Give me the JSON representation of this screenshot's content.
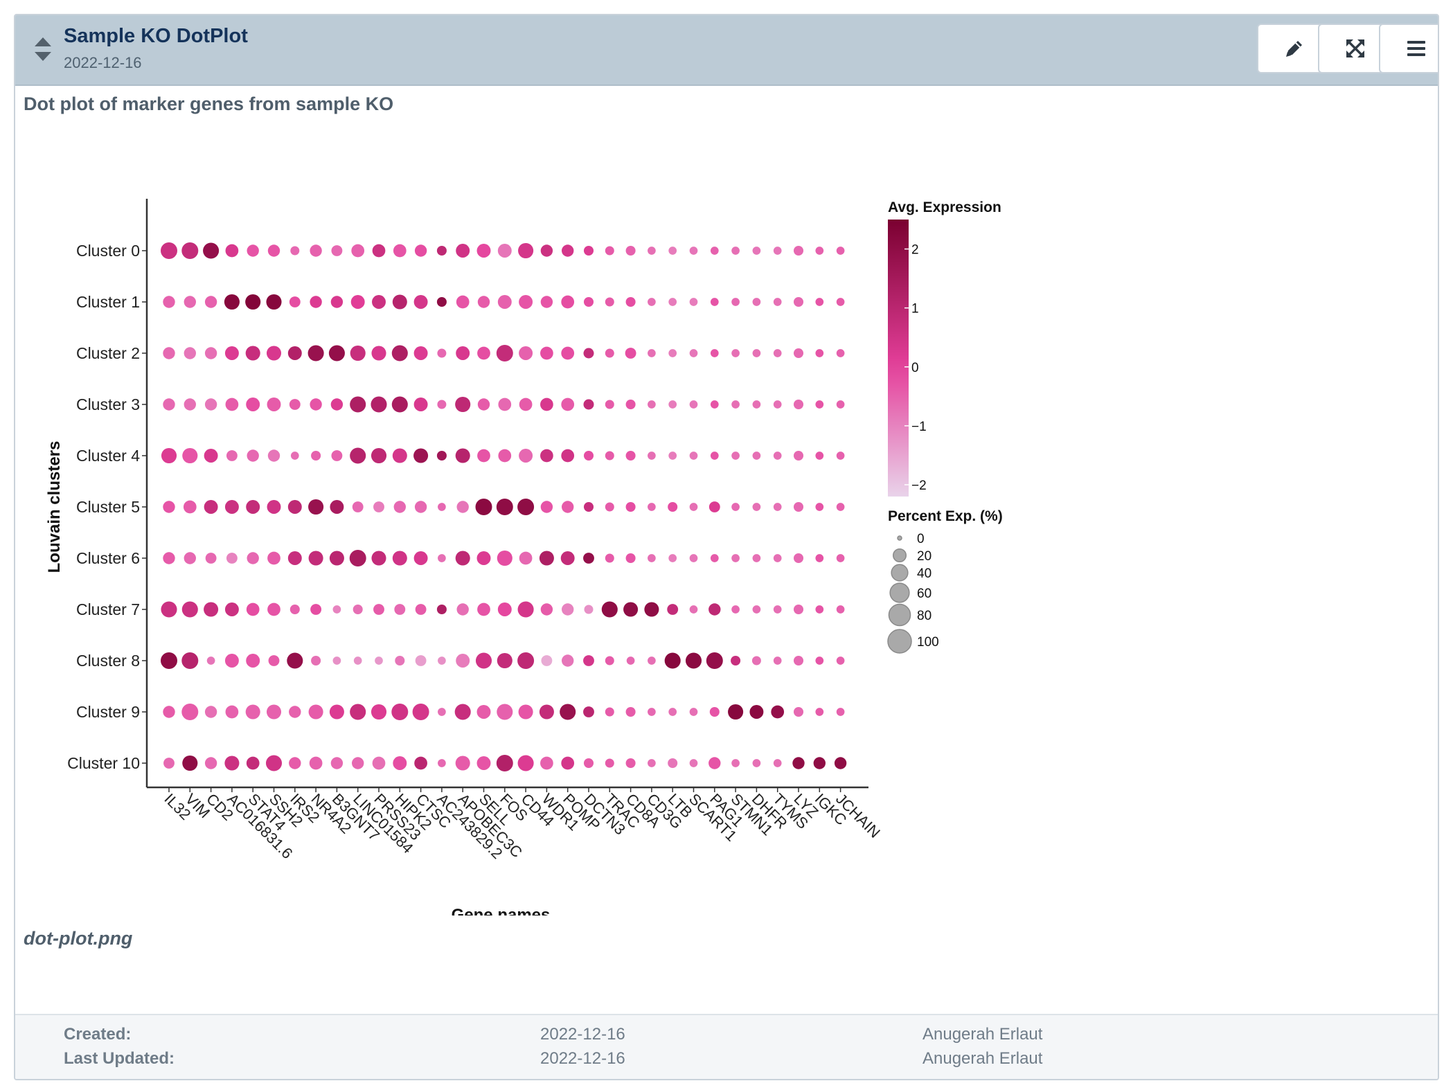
{
  "card": {
    "title": "Sample KO DotPlot",
    "date": "2022-12-16",
    "description": "Dot plot of marker genes from sample KO",
    "filename": "dot-plot.png",
    "buttons": {
      "edit": "pencil-icon",
      "expand": "expand-icon",
      "menu": "menu-icon"
    }
  },
  "footer": {
    "created_label": "Created:",
    "created_date": "2022-12-16",
    "created_by": "Anugerah Erlaut",
    "updated_label": "Last Updated:",
    "updated_date": "2022-12-16",
    "updated_by": "Anugerah Erlaut"
  },
  "colors": {
    "header_bg": "#bccbd6",
    "title": "#15335a",
    "low": "#e9d3ea",
    "mid": "#e5409b",
    "high": "#7a0030"
  },
  "chart_data": {
    "type": "dotplot",
    "xlabel": "Gene names",
    "ylabel": "Louvain clusters",
    "genes": [
      "IL32",
      "VIM",
      "CD2",
      "AC016831.6",
      "STAT4",
      "SSH2",
      "IRS2",
      "NR4A2",
      "B3GNT7",
      "LINC01584",
      "PRSS23",
      "HIPK2",
      "CTSC",
      "AC243829.2",
      "APOBEC3C",
      "SELL",
      "FOS",
      "CD44",
      "WDR1",
      "POMP",
      "DCTN3",
      "TRAC",
      "CD8A",
      "CD3G",
      "LTB",
      "SCART1",
      "PAG1",
      "STMN1",
      "DHFR",
      "TYMS",
      "LYZ",
      "IGKC",
      "JCHAIN"
    ],
    "clusters": [
      "Cluster 0",
      "Cluster 1",
      "Cluster 2",
      "Cluster 3",
      "Cluster 4",
      "Cluster 5",
      "Cluster 6",
      "Cluster 7",
      "Cluster 8",
      "Cluster 9",
      "Cluster 10"
    ],
    "legend_color": {
      "title": "Avg. Expression",
      "ticks": [
        "2",
        "1",
        "0",
        "−1",
        "−2"
      ],
      "range": [
        -2.2,
        2.5
      ]
    },
    "legend_size": {
      "title": "Percent Exp. (%)",
      "ticks": [
        "0",
        "20",
        "40",
        "60",
        "80",
        "100"
      ]
    },
    "expression": [
      [
        0.6,
        0.8,
        1.9,
        0.3,
        -0.3,
        -0.3,
        -0.6,
        -0.5,
        -0.6,
        -0.5,
        0.6,
        -0.3,
        -0.2,
        0.9,
        0.5,
        -0.1,
        -0.8,
        0.4,
        0.6,
        0.4,
        0.2,
        -0.4,
        -0.5,
        -0.7,
        -0.9,
        -0.8,
        -0.5,
        -0.7,
        -0.8,
        -0.8,
        -0.6,
        -0.5,
        -0.5
      ],
      [
        -0.5,
        -0.6,
        -0.5,
        2.2,
        2.3,
        2.2,
        -0.2,
        0.2,
        0.3,
        0.1,
        0.6,
        1.1,
        0.4,
        2.0,
        -0.3,
        -0.4,
        -0.5,
        -0.3,
        -0.3,
        -0.2,
        -0.2,
        -0.4,
        -0.2,
        -0.7,
        -0.9,
        -0.9,
        -0.3,
        -0.6,
        -0.7,
        -0.7,
        -0.6,
        -0.3,
        -0.4
      ],
      [
        -0.6,
        -0.8,
        -0.7,
        0.2,
        0.7,
        0.3,
        1.2,
        1.8,
        1.9,
        0.7,
        0.3,
        1.3,
        0.2,
        -0.6,
        0.3,
        -0.2,
        0.8,
        -0.5,
        -0.2,
        -0.2,
        0.8,
        -0.4,
        -0.2,
        -0.7,
        -0.9,
        -0.8,
        -0.3,
        -0.7,
        -0.7,
        -0.7,
        -0.6,
        -0.3,
        -0.5
      ],
      [
        -0.6,
        -0.7,
        -0.8,
        -0.4,
        -0.2,
        -0.4,
        -0.4,
        -0.3,
        0.2,
        1.3,
        1.2,
        1.4,
        0.3,
        -0.6,
        0.9,
        -0.4,
        -0.6,
        -0.4,
        0.3,
        -0.4,
        0.8,
        -0.4,
        -0.3,
        -0.7,
        -0.9,
        -0.8,
        -0.3,
        -0.7,
        -0.7,
        -0.7,
        -0.6,
        -0.3,
        -0.5
      ],
      [
        0.2,
        -0.3,
        0.3,
        -0.6,
        -0.6,
        -0.8,
        -0.7,
        -0.5,
        -0.5,
        1.1,
        0.9,
        0.4,
        1.7,
        1.6,
        1.1,
        -0.3,
        -0.4,
        -0.6,
        0.6,
        0.5,
        -0.2,
        -0.4,
        -0.3,
        -0.7,
        -0.9,
        -0.8,
        -0.3,
        -0.7,
        -0.7,
        -0.7,
        -0.6,
        -0.3,
        -0.5
      ],
      [
        -0.3,
        -0.4,
        0.7,
        0.6,
        0.8,
        0.5,
        0.9,
        1.8,
        1.4,
        -0.6,
        -0.9,
        -0.6,
        -0.6,
        -0.6,
        -0.8,
        2.1,
        2.0,
        2.0,
        -0.3,
        -0.4,
        0.7,
        -0.4,
        -0.2,
        -0.6,
        -0.2,
        -0.7,
        0.2,
        -0.6,
        -0.7,
        -0.7,
        -0.6,
        -0.3,
        -0.5
      ],
      [
        -0.4,
        -0.6,
        -0.6,
        -1.0,
        -0.6,
        -0.4,
        0.7,
        0.8,
        1.0,
        1.4,
        0.8,
        0.5,
        0.3,
        -0.7,
        0.9,
        0.2,
        -0.2,
        -0.6,
        1.3,
        0.8,
        1.9,
        -0.4,
        -0.3,
        -0.7,
        -0.9,
        -0.8,
        -0.4,
        -0.7,
        -0.7,
        -0.7,
        -0.6,
        -0.3,
        -0.5
      ],
      [
        0.6,
        0.6,
        0.7,
        0.6,
        -0.2,
        -0.3,
        -0.5,
        -0.2,
        -1.0,
        -0.7,
        -0.4,
        -0.6,
        -0.4,
        1.3,
        -0.7,
        -0.3,
        -0.1,
        0.4,
        -0.4,
        -1.0,
        -1.2,
        2.0,
        2.0,
        2.0,
        0.8,
        -0.7,
        0.9,
        -0.6,
        -0.7,
        -0.7,
        -0.6,
        -0.3,
        -0.5
      ],
      [
        2.0,
        1.1,
        -0.8,
        -0.3,
        -0.3,
        -0.4,
        1.9,
        -0.7,
        -1.2,
        -1.2,
        -1.3,
        -0.8,
        -1.4,
        -1.2,
        -0.9,
        0.5,
        0.8,
        0.9,
        -1.6,
        -0.8,
        0.4,
        -0.4,
        -0.6,
        -0.7,
        2.2,
        2.1,
        1.9,
        0.7,
        -0.7,
        -0.7,
        -0.6,
        -0.3,
        -0.5
      ],
      [
        -0.4,
        -0.4,
        -0.7,
        -0.5,
        -0.5,
        -0.5,
        -0.5,
        -0.4,
        0.2,
        0.7,
        0.2,
        0.5,
        0.4,
        -0.7,
        0.7,
        -0.4,
        -0.5,
        -0.3,
        0.8,
        1.8,
        1.0,
        -0.4,
        -0.4,
        -0.6,
        -0.7,
        -0.7,
        -0.3,
        2.2,
        2.1,
        1.9,
        -0.6,
        -0.4,
        -0.5
      ],
      [
        -0.6,
        2.0,
        -0.6,
        0.6,
        0.8,
        0.5,
        -0.4,
        -0.5,
        -0.6,
        -0.6,
        -0.7,
        -0.2,
        1.0,
        -0.6,
        -0.4,
        -0.3,
        1.2,
        0.2,
        -0.5,
        0.4,
        -0.4,
        -0.4,
        -0.4,
        -0.7,
        -0.8,
        -0.8,
        -0.3,
        -0.7,
        -0.7,
        -0.7,
        2.0,
        2.0,
        2.0
      ]
    ],
    "percent": [
      [
        100,
        100,
        90,
        50,
        40,
        40,
        15,
        40,
        30,
        50,
        50,
        50,
        40,
        20,
        60,
        60,
        60,
        80,
        40,
        40,
        20,
        15,
        20,
        10,
        10,
        10,
        10,
        10,
        10,
        10,
        20,
        10,
        10
      ],
      [
        40,
        40,
        40,
        80,
        80,
        80,
        30,
        40,
        40,
        60,
        60,
        70,
        60,
        20,
        50,
        40,
        60,
        60,
        40,
        50,
        20,
        15,
        20,
        10,
        10,
        10,
        10,
        10,
        10,
        10,
        20,
        10,
        10
      ],
      [
        40,
        40,
        40,
        60,
        70,
        70,
        60,
        90,
        90,
        80,
        70,
        90,
        60,
        15,
        60,
        50,
        100,
        60,
        50,
        50,
        25,
        15,
        30,
        10,
        10,
        10,
        10,
        10,
        10,
        10,
        20,
        10,
        10
      ],
      [
        40,
        40,
        40,
        50,
        60,
        60,
        30,
        40,
        40,
        90,
        90,
        90,
        60,
        15,
        80,
        40,
        50,
        50,
        50,
        50,
        25,
        15,
        20,
        10,
        10,
        10,
        10,
        10,
        10,
        10,
        20,
        10,
        10
      ],
      [
        80,
        80,
        60,
        30,
        40,
        40,
        10,
        20,
        30,
        90,
        80,
        70,
        70,
        20,
        70,
        50,
        50,
        60,
        50,
        50,
        20,
        15,
        20,
        10,
        10,
        10,
        10,
        10,
        10,
        10,
        20,
        10,
        10
      ],
      [
        40,
        50,
        60,
        60,
        60,
        60,
        60,
        80,
        60,
        30,
        30,
        40,
        40,
        10,
        40,
        100,
        100,
        100,
        40,
        40,
        20,
        15,
        20,
        10,
        20,
        10,
        30,
        10,
        10,
        10,
        20,
        10,
        10
      ],
      [
        40,
        40,
        30,
        30,
        40,
        50,
        60,
        70,
        70,
        100,
        70,
        70,
        60,
        10,
        70,
        60,
        80,
        50,
        70,
        60,
        30,
        15,
        20,
        10,
        10,
        10,
        10,
        10,
        10,
        10,
        20,
        10,
        10
      ],
      [
        90,
        90,
        70,
        60,
        50,
        50,
        20,
        30,
        10,
        20,
        30,
        30,
        30,
        20,
        40,
        50,
        60,
        90,
        40,
        40,
        15,
        90,
        70,
        70,
        30,
        10,
        40,
        10,
        10,
        10,
        20,
        10,
        10
      ],
      [
        100,
        100,
        10,
        60,
        60,
        30,
        90,
        20,
        10,
        10,
        10,
        20,
        30,
        10,
        60,
        90,
        80,
        100,
        30,
        40,
        30,
        15,
        10,
        10,
        90,
        90,
        100,
        20,
        15,
        10,
        20,
        10,
        10
      ],
      [
        40,
        100,
        40,
        50,
        70,
        70,
        40,
        70,
        70,
        90,
        80,
        100,
        100,
        10,
        90,
        60,
        90,
        70,
        70,
        90,
        30,
        15,
        20,
        10,
        10,
        10,
        20,
        80,
        60,
        50,
        20,
        10,
        10
      ],
      [
        30,
        80,
        40,
        70,
        50,
        90,
        40,
        50,
        40,
        40,
        50,
        60,
        50,
        10,
        70,
        60,
        100,
        90,
        50,
        50,
        20,
        15,
        20,
        10,
        20,
        10,
        40,
        10,
        10,
        10,
        40,
        40,
        40
      ]
    ]
  }
}
